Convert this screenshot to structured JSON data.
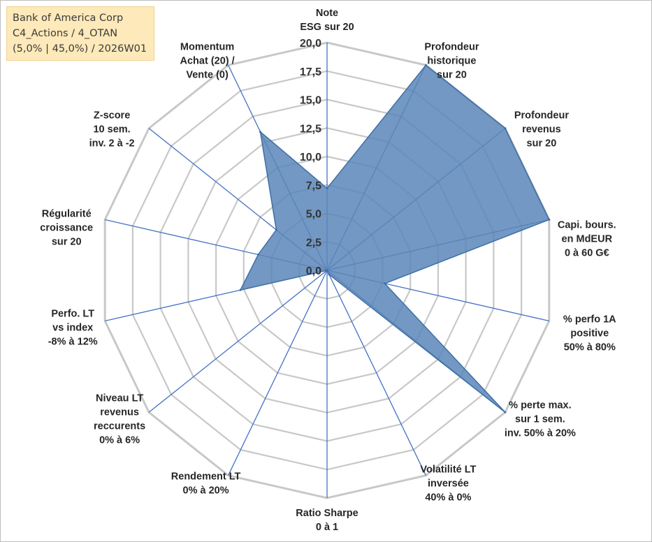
{
  "info_box": {
    "line1": "Bank of America Corp",
    "line2": "C4_Actions / 4_OTAN",
    "line3": "(5,0% | 45,0%) / 2026W01"
  },
  "colors": {
    "fill": "#5b86b8",
    "stroke": "#3f6fa6",
    "grid": "#c8c8c8",
    "spoke": "#4472c4",
    "info_bg": "#fde9b9"
  },
  "chart_data": {
    "type": "radar",
    "title": "",
    "rmin": 0,
    "rmax": 20,
    "ticks": [
      "0,0",
      "2,5",
      "5,0",
      "7,5",
      "10,0",
      "12,5",
      "15,0",
      "17,5",
      "20,0"
    ],
    "tick_values": [
      0,
      2.5,
      5,
      7.5,
      10,
      12.5,
      15,
      17.5,
      20
    ],
    "categories": [
      [
        "Note",
        "ESG sur 20"
      ],
      [
        "Profondeur",
        "historique",
        "sur 20"
      ],
      [
        "Profondeur",
        "revenus",
        "sur 20"
      ],
      [
        "Capi. bours.",
        "en MdEUR",
        "0 à 60 G€"
      ],
      [
        "% perfo 1A",
        "positive",
        "50% à 80%"
      ],
      [
        "% perte max.",
        "sur 1 sem.",
        "inv. 50% à 20%"
      ],
      [
        "Volatilité LT",
        "inversée",
        "40% à 0%"
      ],
      [
        "Ratio Sharpe",
        "0 à 1"
      ],
      [
        "Rendement LT",
        "0% à 20%"
      ],
      [
        "Niveau LT",
        "revenus",
        "reccurents",
        "0% à 6%"
      ],
      [
        "Perfo. LT",
        "vs index",
        "-8% à 12%"
      ],
      [
        "Régularité",
        "croissance",
        "sur 20"
      ],
      [
        "Z-score",
        "10 sem.",
        "inv. 2 à -2"
      ],
      [
        "Momentum",
        "Achat (20) /",
        "Vente (0)"
      ]
    ],
    "series": [
      {
        "name": "Bank of America Corp",
        "values": [
          7.2,
          20,
          20,
          20,
          5.2,
          20,
          0.4,
          0,
          0,
          0,
          7.8,
          6.2,
          5.7,
          13.5
        ]
      }
    ]
  }
}
